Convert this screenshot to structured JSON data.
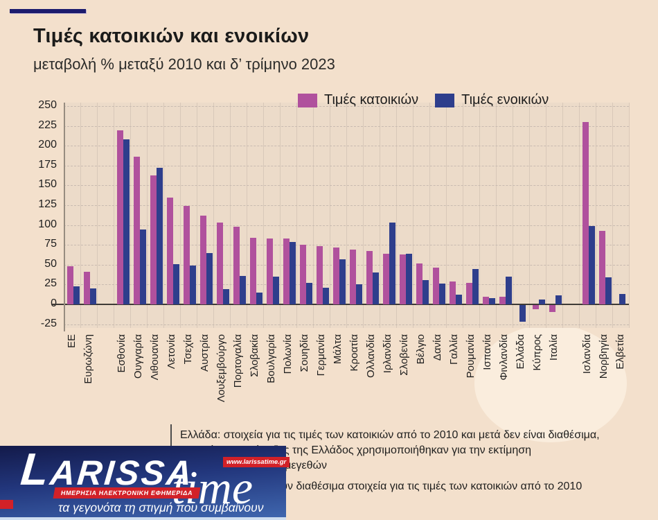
{
  "header": {
    "title": "Τιμές κατοικιών και ενοικίων",
    "subtitle": "μεταβολή % μεταξύ 2010 και δ’ τρίμηνο 2023"
  },
  "chart_data": {
    "type": "bar",
    "title": "Τιμές κατοικιών και ενοικίων",
    "subtitle": "μεταβολή % μεταξύ 2010 και δ’ τρίμηνο 2023",
    "ylabel": "μεταβολή %",
    "ylim": [
      -25,
      250
    ],
    "ytick_step": 25,
    "grid": true,
    "legend_position": "top-right",
    "categories": [
      "ΕΕ",
      "Ευρωζώνη",
      "Εσθονία",
      "Ουγγαρία",
      "Λιθουανία",
      "Λετονία",
      "Τσεχία",
      "Αυστρία",
      "Λουξεμβούργο",
      "Πορτογαλία",
      "Σλοβακία",
      "Βουλγαρία",
      "Πολωνία",
      "Σουηδία",
      "Γερμανία",
      "Μάλτα",
      "Κροατία",
      "Ολλανδία",
      "Ιρλανδία",
      "Σλοβενία",
      "Βέλγιο",
      "Δανία",
      "Γαλλία",
      "Ρουμανία",
      "Ισπανία",
      "Φινλανδία",
      "Ελλάδα",
      "Κύπρος",
      "Ιταλία",
      "Ισλανδία",
      "Νορβηγία",
      "Ελβετία"
    ],
    "gap_after_indices": [
      1,
      28
    ],
    "series": [
      {
        "name": "Τιμές κατοικιών",
        "color": "#b0519d",
        "values": [
          48,
          41,
          219,
          186,
          163,
          135,
          124,
          112,
          103,
          98,
          84,
          83,
          83,
          75,
          73,
          72,
          69,
          67,
          64,
          63,
          52,
          46,
          29,
          27,
          10,
          10,
          null,
          -5,
          -9,
          230,
          93,
          null
        ]
      },
      {
        "name": "Τιμές ενοικιών",
        "color": "#2e3e8c",
        "values": [
          23,
          20,
          208,
          94,
          172,
          51,
          49,
          65,
          19,
          36,
          15,
          35,
          79,
          27,
          21,
          57,
          25,
          40,
          103,
          64,
          31,
          26,
          12,
          45,
          8,
          35,
          -21,
          6,
          11,
          99,
          34,
          13
        ]
      }
    ]
  },
  "footnotes": {
    "lines": [
      "Ελλάδα: στοιχεία για τις τιμές των κατοικιών από το 2010 και μετά δεν είναι διαθέσιμα,",
      "στοιχεία της Τράπεζας της Ελλάδος χρησιμοποιήθηκαν για την εκτίμηση",
      "των συγκεντρωτικών μεγεθών",
      "Ελβετία: δεν υπάρχουν διαθέσιμα στοιχεία για τις τιμές των κατοικιών από το 2010"
    ]
  },
  "logo": {
    "brand_main": "LARISSA",
    "brand_accent": "time",
    "website": "www.larissatime.gr",
    "ribbon": "ΗΜΕΡΗΣΙΑ ΗΛΕΚΤΡΟΝΙΚΗ ΕΦΗΜΕΡΙΔΑ",
    "tagline": "τα γεγονότα τη στιγμή που συμβαίνουν"
  },
  "colors": {
    "background": "#f3e0cc",
    "plot_background": "#ecdbc9",
    "house_prices": "#b0519d",
    "rents": "#2e3e8c",
    "accent_bar": "#1c1c6e",
    "logo_red": "#d22128"
  }
}
